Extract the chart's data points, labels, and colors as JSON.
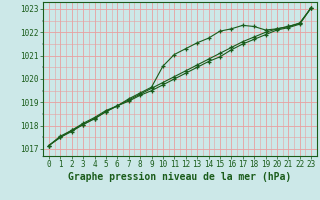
{
  "xlabel": "Graphe pression niveau de la mer (hPa)",
  "ylim": [
    1016.7,
    1023.3
  ],
  "xlim": [
    -0.5,
    23.5
  ],
  "yticks": [
    1017,
    1018,
    1019,
    1020,
    1021,
    1022,
    1023
  ],
  "xticks": [
    0,
    1,
    2,
    3,
    4,
    5,
    6,
    7,
    8,
    9,
    10,
    11,
    12,
    13,
    14,
    15,
    16,
    17,
    18,
    19,
    20,
    21,
    22,
    23
  ],
  "background_color": "#cce8e8",
  "grid_color": "#e8a0a0",
  "line_color": "#1a5c1a",
  "line1": [
    1017.15,
    1017.5,
    1017.75,
    1018.05,
    1018.3,
    1018.6,
    1018.85,
    1019.1,
    1019.35,
    1019.6,
    1019.85,
    1020.1,
    1020.35,
    1020.6,
    1020.85,
    1021.1,
    1021.35,
    1021.6,
    1021.8,
    1022.0,
    1022.15,
    1022.25,
    1022.38,
    1023.05
  ],
  "line2": [
    1017.15,
    1017.55,
    1017.8,
    1018.1,
    1018.35,
    1018.65,
    1018.85,
    1019.15,
    1019.4,
    1019.65,
    1020.55,
    1021.05,
    1021.3,
    1021.55,
    1021.75,
    1022.05,
    1022.15,
    1022.3,
    1022.25,
    1022.1,
    1022.15,
    1022.25,
    1022.4,
    1023.05
  ],
  "line3": [
    1017.15,
    1017.5,
    1017.8,
    1018.05,
    1018.3,
    1018.6,
    1018.85,
    1019.05,
    1019.3,
    1019.5,
    1019.75,
    1020.0,
    1020.25,
    1020.5,
    1020.75,
    1020.95,
    1021.25,
    1021.5,
    1021.7,
    1021.9,
    1022.1,
    1022.2,
    1022.35,
    1023.05
  ],
  "tick_fontsize": 5.5,
  "label_fontsize": 7.0,
  "label_fontweight": "bold",
  "figwidth": 3.2,
  "figheight": 2.0,
  "dpi": 100
}
